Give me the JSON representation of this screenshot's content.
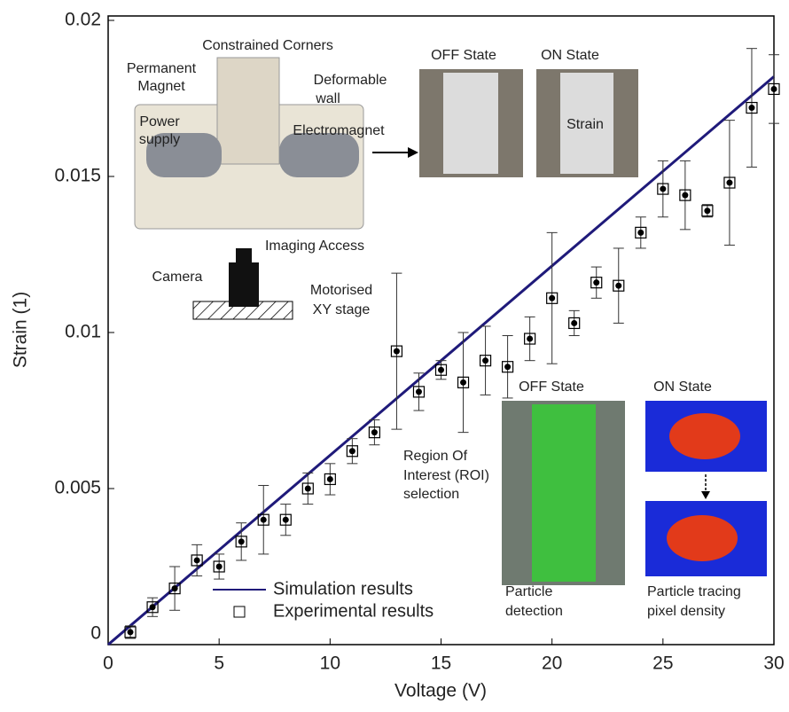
{
  "chart_data": {
    "type": "errorbar-line",
    "xlabel": "Voltage (V)",
    "ylabel": "Strain (1)",
    "xlim": [
      0,
      30
    ],
    "ylim": [
      0,
      0.02
    ],
    "xticks": [
      0,
      5,
      10,
      15,
      20,
      25,
      30
    ],
    "yticks": [
      0,
      0.005,
      0.01,
      0.015,
      0.02
    ],
    "series": [
      {
        "name": "Simulation results",
        "kind": "line",
        "color": "#1f1a7a",
        "x": [
          0,
          30
        ],
        "values": [
          0,
          0.0182
        ]
      },
      {
        "name": "Experimental results",
        "kind": "points",
        "color": "#000000",
        "x": [
          1,
          2,
          3,
          4,
          5,
          6,
          7,
          8,
          9,
          10,
          11,
          12,
          13,
          14,
          15,
          16,
          17,
          18,
          19,
          20,
          21,
          22,
          23,
          24,
          25,
          26,
          27,
          28,
          29,
          30
        ],
        "values": [
          0.0004,
          0.0012,
          0.0018,
          0.0027,
          0.0025,
          0.0033,
          0.004,
          0.004,
          0.005,
          0.0053,
          0.0062,
          0.0068,
          0.0094,
          0.0081,
          0.0088,
          0.0084,
          0.0091,
          0.0089,
          0.0098,
          0.0111,
          0.0103,
          0.0116,
          0.0115,
          0.0132,
          0.0146,
          0.0144,
          0.0139,
          0.0148,
          0.0172,
          0.0178
        ],
        "errors": [
          0.0002,
          0.0003,
          0.0007,
          0.0005,
          0.0004,
          0.0006,
          0.0011,
          0.0005,
          0.0005,
          0.0005,
          0.0004,
          0.0004,
          0.0025,
          0.0006,
          0.0003,
          0.0016,
          0.0011,
          0.001,
          0.0007,
          0.0021,
          0.0004,
          0.0005,
          0.0012,
          0.0005,
          0.0009,
          0.0011,
          0.0002,
          0.002,
          0.0019,
          0.0011
        ]
      }
    ],
    "annotations": [
      "Constrained Corners",
      "Permanent",
      "Magnet",
      "Deformable",
      "wall",
      "Power",
      "supply",
      "Electromagnet",
      "Imaging Access",
      "Camera",
      "Motorised",
      "XY stage",
      "OFF State",
      "ON State",
      "Strain",
      "OFF State",
      "ON State",
      "Region Of",
      "Interest (ROI)",
      "selection",
      "Particle",
      "detection",
      "Particle tracing",
      "pixel density"
    ]
  }
}
